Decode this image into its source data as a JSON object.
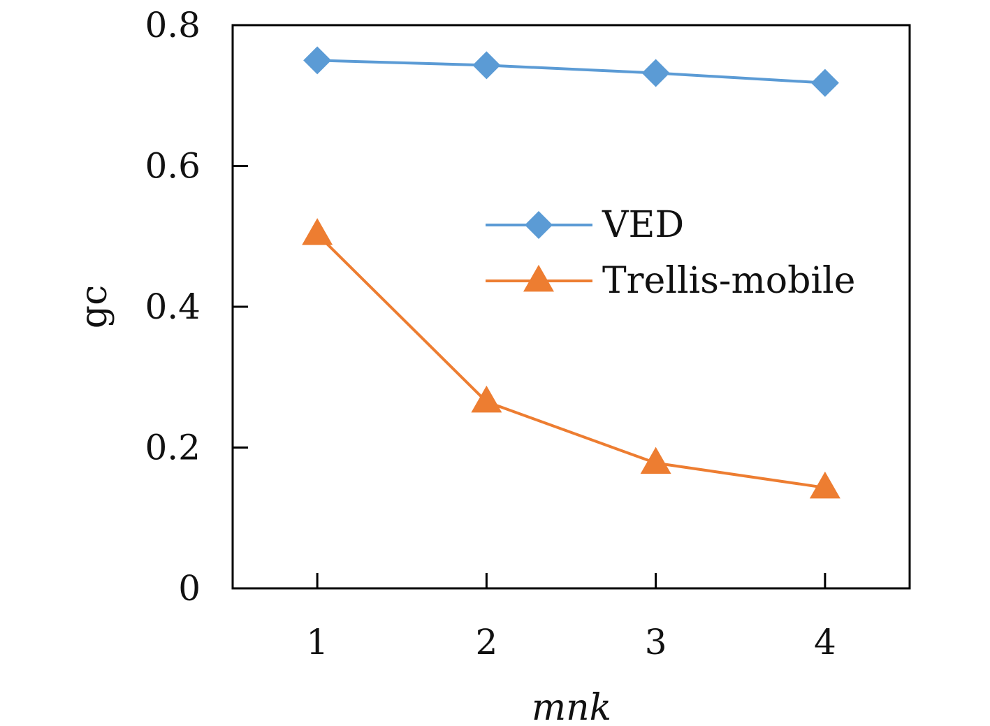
{
  "chart_data": {
    "type": "line",
    "title": "",
    "xlabel": "mnk",
    "ylabel": "gc",
    "categories": [
      "1",
      "2",
      "3",
      "4"
    ],
    "x": [
      1,
      2,
      3,
      4
    ],
    "xlim": [
      0.5,
      4.5
    ],
    "ylim": [
      0,
      0.8
    ],
    "y_ticks": [
      "0",
      "0.2",
      "0.4",
      "0.6",
      "0.8"
    ],
    "grid": false,
    "legend_position": "center-right",
    "series": [
      {
        "name": "VED",
        "values": [
          0.75,
          0.743,
          0.732,
          0.718
        ],
        "color": "#5B9BD5",
        "marker": "diamond"
      },
      {
        "name": "Trellis-mobile",
        "values": [
          0.503,
          0.265,
          0.178,
          0.143
        ],
        "color": "#ED7D31",
        "marker": "triangle"
      }
    ]
  }
}
